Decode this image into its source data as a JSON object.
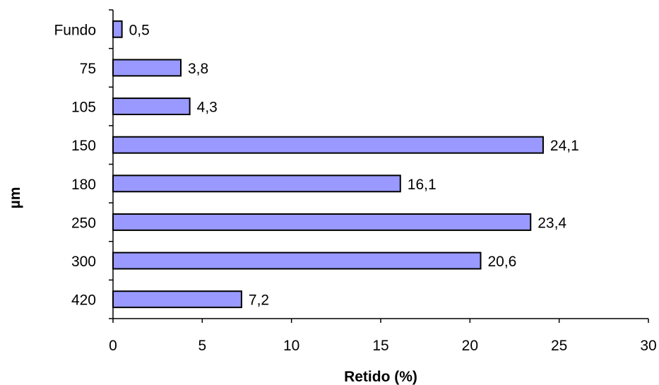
{
  "chart_data": {
    "type": "bar",
    "orientation": "horizontal",
    "categories": [
      "Fundo",
      "75",
      "105",
      "150",
      "180",
      "250",
      "300",
      "420"
    ],
    "values": [
      0.5,
      3.8,
      4.3,
      24.1,
      16.1,
      23.4,
      20.6,
      7.2
    ],
    "data_labels": [
      "0,5",
      "3,8",
      "4,3",
      "24,1",
      "16,1",
      "23,4",
      "20,6",
      "7,2"
    ],
    "xlabel": "Retido (%)",
    "ylabel": "µm",
    "xlim": [
      0,
      30
    ],
    "x_ticks": [
      0,
      5,
      10,
      15,
      20,
      25,
      30
    ],
    "grid": false,
    "legend": "none",
    "colors": {
      "bar_fill": "#9999ff",
      "bar_stroke": "#000000"
    }
  }
}
